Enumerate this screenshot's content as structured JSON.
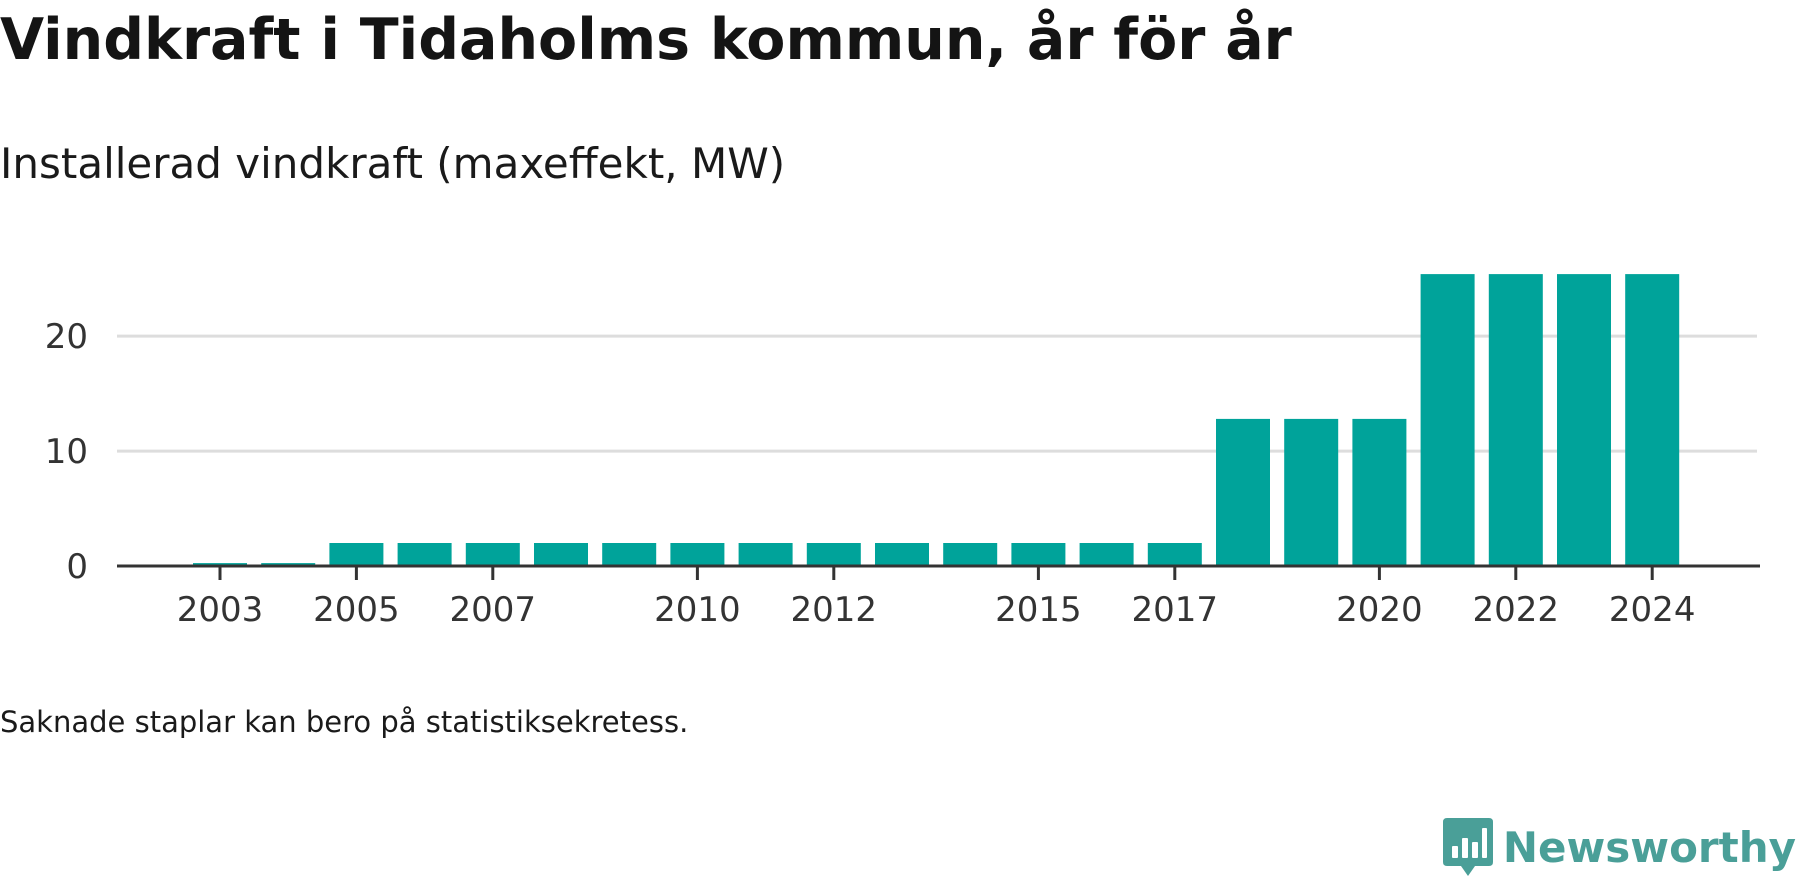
{
  "header": {
    "title": "Vindkraft i Tidaholms kommun, år för år",
    "subtitle": "Installerad vindkraft (maxeffekt, MW)"
  },
  "footer": {
    "note": "Saknade staplar kan bero på statistiksekretess.",
    "brand": "Newsworthy"
  },
  "colors": {
    "bar": "#00a39a",
    "grid": "#dddddd",
    "axis": "#333333",
    "brand": "#4a9f98"
  },
  "chart_data": {
    "type": "bar",
    "categories": [
      "2003",
      "2004",
      "2005",
      "2006",
      "2007",
      "2008",
      "2009",
      "2010",
      "2011",
      "2012",
      "2013",
      "2014",
      "2015",
      "2016",
      "2017",
      "2018",
      "2019",
      "2020",
      "2021",
      "2022",
      "2023",
      "2024"
    ],
    "values": [
      0.25,
      0.25,
      2,
      2,
      2,
      2,
      2,
      2,
      2,
      2,
      2,
      2,
      2,
      2,
      2,
      12.8,
      12.8,
      12.8,
      25.4,
      25.4,
      25.4,
      25.4
    ],
    "x_tick_labels": [
      "2003",
      "2005",
      "2007",
      "2010",
      "2012",
      "2015",
      "2017",
      "2020",
      "2022",
      "2024"
    ],
    "y_ticks": [
      0,
      10,
      20
    ],
    "ylim": [
      0,
      27.5
    ],
    "title": "Vindkraft i Tidaholms kommun, år för år",
    "subtitle": "Installerad vindkraft (maxeffekt, MW)",
    "xlabel": "",
    "ylabel": "",
    "grid": true
  }
}
